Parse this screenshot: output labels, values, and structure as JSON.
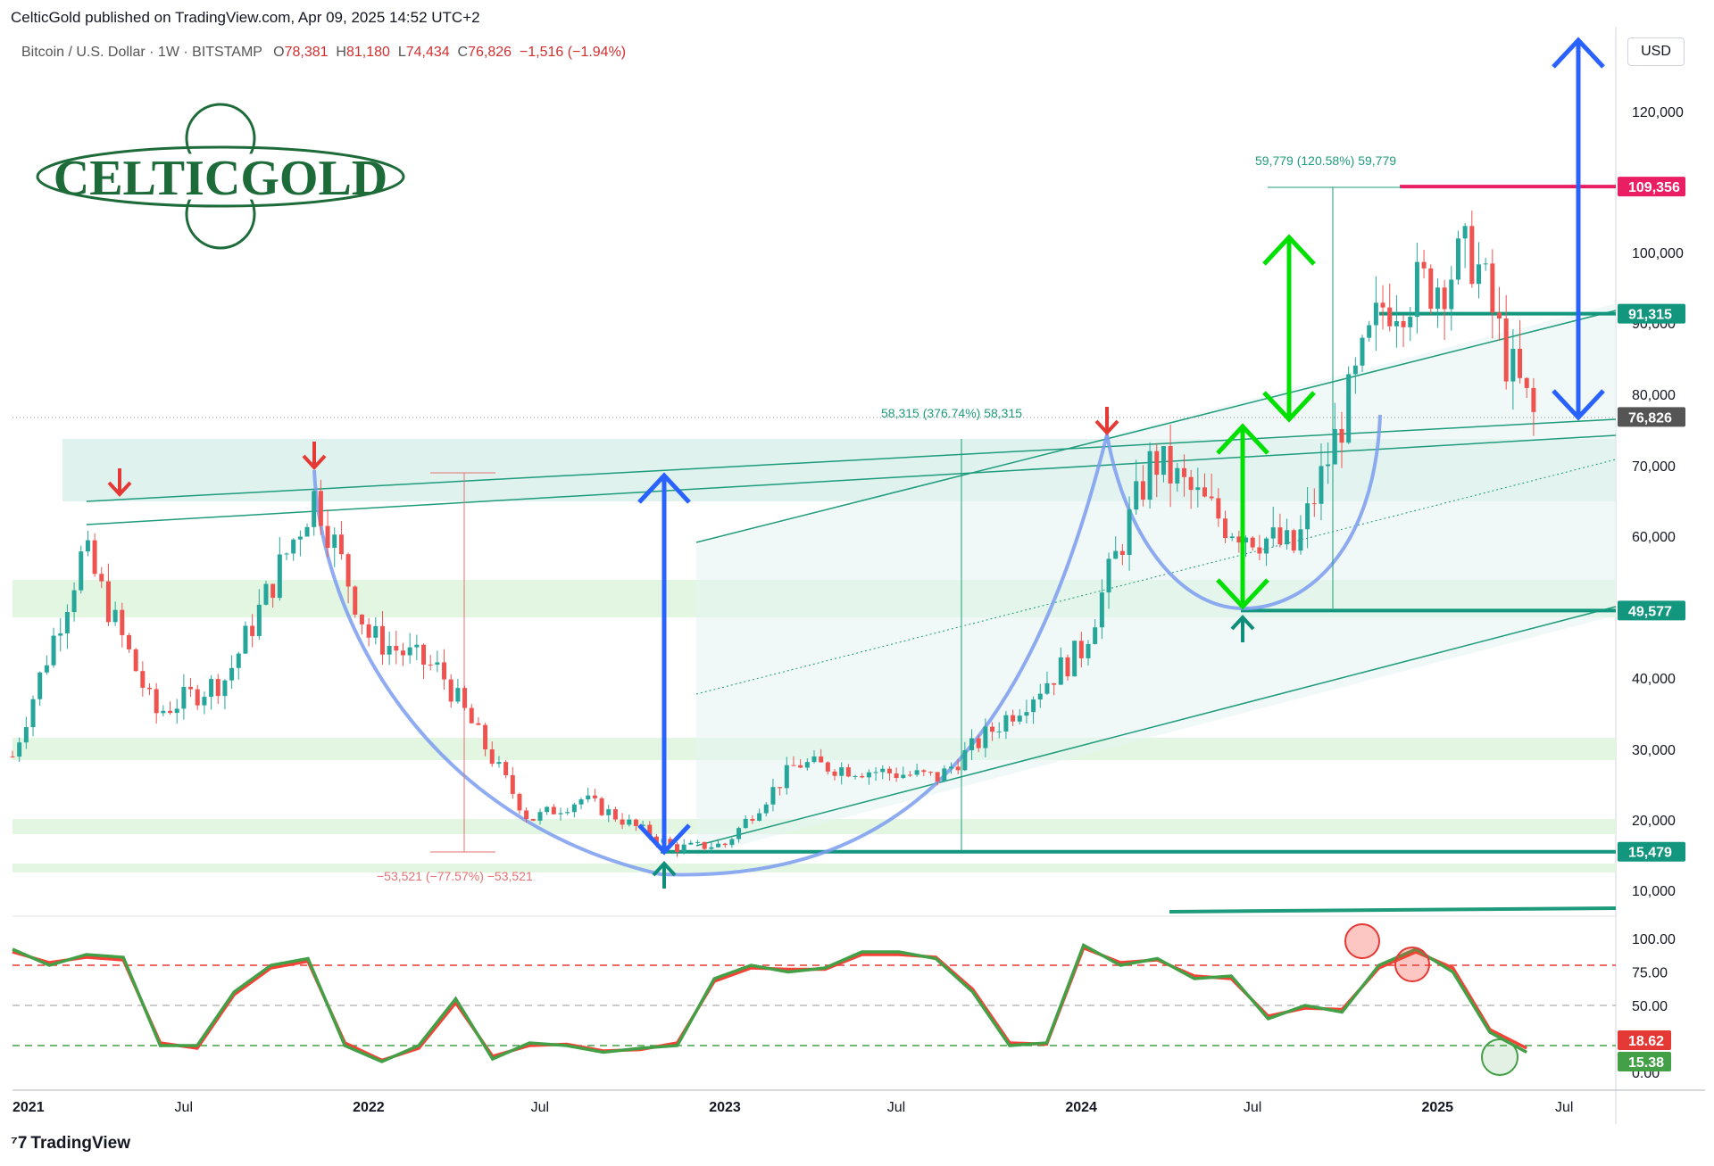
{
  "header": {
    "published_line": "CelticGold published on TradingView.com, Apr 09, 2025 14:52 UTC+2",
    "symbol": "Bitcoin / U.S. Dollar · 1W · BITSTAMP",
    "ohlc": {
      "O": "78,381",
      "H": "81,180",
      "L": "74,434",
      "C": "76,826",
      "change": "−1,516 (−1.94%)"
    },
    "currency": "USD"
  },
  "logo": {
    "text": "CELTICGOLD"
  },
  "footer": {
    "brand": "TradingView"
  },
  "colors": {
    "candle_up": "#26a69a",
    "candle_down": "#ef5350",
    "channel": "#1e9b7a",
    "arrow_blue": "#2962ff",
    "arrow_green": "#00e000",
    "arrow_red": "#e53935",
    "cup_curve": "#7b9cf0",
    "stoch_k": "#43a047",
    "stoch_d": "#f44336",
    "resistance": "#e91e63",
    "support": "#12967e"
  },
  "chart_data": [
    {
      "type": "candlestick",
      "title": "Bitcoin / U.S. Dollar · 1W · BITSTAMP",
      "x_ticks": [
        "2021",
        "Jul",
        "2022",
        "Jul",
        "2023",
        "Jul",
        "2024",
        "Jul",
        "2025",
        "Jul"
      ],
      "y_ticks": [
        "120,000",
        "100,000",
        "90,000",
        "80,000",
        "70,000",
        "60,000",
        "40,000",
        "30,000",
        "20,000",
        "10,000"
      ],
      "ylim": [
        5000,
        130000
      ],
      "price_levels": [
        {
          "label": "109,356",
          "value": 109356,
          "kind": "resistance"
        },
        {
          "label": "91,315",
          "value": 91315,
          "kind": "support"
        },
        {
          "label": "76,826",
          "value": 76826,
          "kind": "last"
        },
        {
          "label": "49,577",
          "value": 49577,
          "kind": "support"
        },
        {
          "label": "15,479",
          "value": 15479,
          "kind": "support"
        }
      ],
      "annotations": [
        {
          "text": "59,779 (120.58%) 59,779",
          "kind": "measure-up"
        },
        {
          "text": "58,315 (376.74%) 58,315",
          "kind": "measure-up"
        },
        {
          "text": "−53,521 (−77.57%) −53,521",
          "kind": "measure-down"
        }
      ],
      "series": [
        {
          "x": [
            2021.0,
            2021.2,
            2021.4,
            2021.6,
            2021.85,
            2022.0,
            2022.2,
            2022.45,
            2022.6,
            2022.86,
            2023.0,
            2023.2,
            2023.4,
            2023.6,
            2023.8,
            2024.0,
            2024.2,
            2024.4,
            2024.6,
            2024.85,
            2025.0,
            2025.1,
            2025.2,
            2025.27
          ],
          "y": [
            29000,
            58000,
            35000,
            40000,
            66000,
            46000,
            41000,
            20000,
            23000,
            16000,
            16500,
            28000,
            27000,
            26000,
            35000,
            44000,
            71000,
            62000,
            58000,
            93000,
            96000,
            100000,
            84000,
            76826
          ]
        }
      ]
    },
    {
      "type": "line",
      "y_ticks": [
        "100.00",
        "75.00",
        "50.00",
        "0.00"
      ],
      "ylim": [
        0,
        100
      ],
      "levels": [
        80,
        50,
        20
      ],
      "series": [
        {
          "label": "15.38",
          "values": [
            92,
            80,
            88,
            86,
            20,
            20,
            60,
            80,
            85,
            20,
            8,
            20,
            55,
            10,
            22,
            20,
            15,
            18,
            20,
            70,
            80,
            75,
            78,
            90,
            90,
            85,
            60,
            20,
            22,
            95,
            80,
            85,
            70,
            72,
            40,
            50,
            45,
            80,
            92,
            75,
            30,
            15
          ]
        },
        {
          "label": "18.62",
          "values": [
            90,
            82,
            86,
            84,
            22,
            18,
            58,
            78,
            83,
            22,
            9,
            18,
            52,
            12,
            20,
            21,
            16,
            17,
            22,
            68,
            78,
            77,
            77,
            88,
            88,
            86,
            62,
            22,
            21,
            93,
            82,
            84,
            72,
            70,
            42,
            48,
            47,
            78,
            90,
            78,
            32,
            18
          ]
        }
      ]
    }
  ]
}
